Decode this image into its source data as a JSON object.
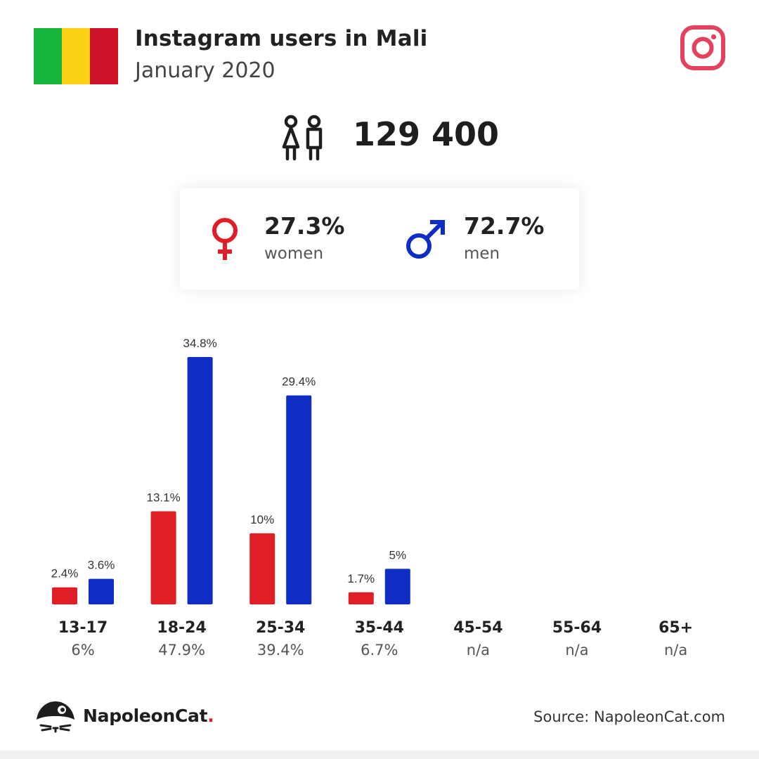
{
  "header": {
    "title": "Instagram users in Mali",
    "subtitle": "January 2020",
    "flag_colors": [
      "#14b53a",
      "#fcd116",
      "#ce1126"
    ],
    "logo_icon": "instagram-icon"
  },
  "total": {
    "icon": "users-icon",
    "value": "129 400"
  },
  "gender": {
    "women": {
      "icon": "female-icon",
      "pct": "27.3%",
      "label": "women",
      "color": "#e01e26"
    },
    "men": {
      "icon": "male-icon",
      "pct": "72.7%",
      "label": "men",
      "color": "#0f2cc5"
    }
  },
  "chart_data": {
    "type": "bar",
    "categories": [
      "13-17",
      "18-24",
      "25-34",
      "35-44",
      "45-54",
      "55-64",
      "65+"
    ],
    "category_totals": [
      "6%",
      "47.9%",
      "39.4%",
      "6.7%",
      "n/a",
      "n/a",
      "n/a"
    ],
    "series": [
      {
        "values": [
          2.4,
          13.1,
          10,
          1.7,
          null,
          null,
          null
        ],
        "labels": [
          "2.4%",
          "13.1%",
          "10%",
          "1.7%",
          "",
          "",
          ""
        ],
        "color": "#e01e26"
      },
      {
        "values": [
          3.6,
          34.8,
          29.4,
          5,
          null,
          null,
          null
        ],
        "labels": [
          "3.6%",
          "34.8%",
          "29.4%",
          "5%",
          "",
          "",
          ""
        ],
        "color": "#0f2cc5"
      }
    ],
    "ylim": [
      0,
      34.8
    ],
    "grid": false
  },
  "footer": {
    "logo_icon": "napoleoncat-logo-icon",
    "brand": "NapoleonCat",
    "brand_dot": ".",
    "source": "Source: NapoleonCat.com"
  }
}
